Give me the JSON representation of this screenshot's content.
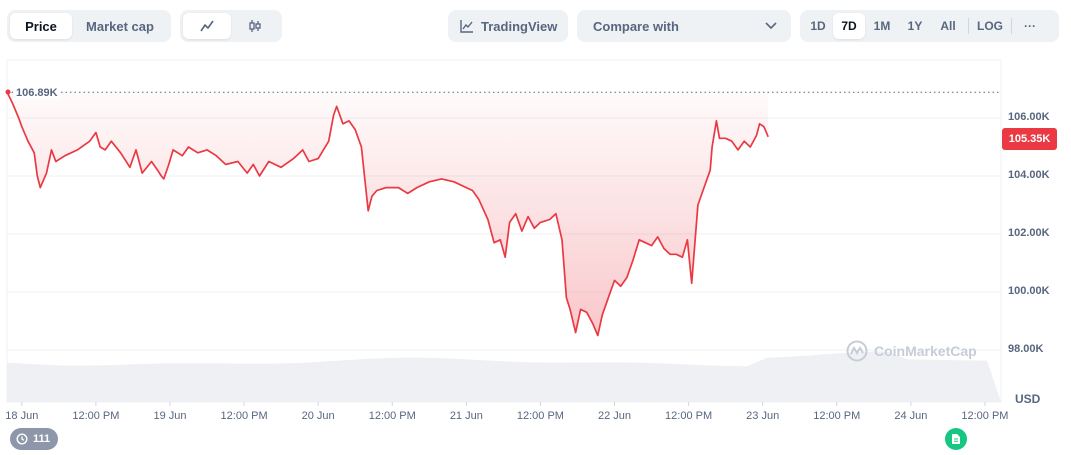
{
  "toolbar": {
    "view_tabs": [
      {
        "label": "Price",
        "active": true
      },
      {
        "label": "Market cap",
        "active": false
      }
    ],
    "chart_type_icons": [
      {
        "icon": "line-chart-icon",
        "active": true
      },
      {
        "icon": "candlestick-icon",
        "active": false
      }
    ],
    "tradingview_label": "TradingView",
    "compare_label": "Compare with",
    "timeframes": [
      {
        "label": "1D",
        "active": false
      },
      {
        "label": "7D",
        "active": true
      },
      {
        "label": "1M",
        "active": false
      },
      {
        "label": "1Y",
        "active": false
      },
      {
        "label": "All",
        "active": false
      }
    ],
    "log_label": "LOG",
    "more_label": "···"
  },
  "chart": {
    "current_price_label": "105.35K",
    "high_label": "106.89K",
    "currency_label": "USD",
    "watermark": "CoinMarketCap",
    "events_count": "111",
    "colors": {
      "line": "#ea3943",
      "accent_green": "#16c784",
      "tag_bg": "#ea3943"
    }
  },
  "chart_data": {
    "type": "line",
    "xlabel": "",
    "ylabel": "",
    "y_unit": "USD",
    "yticks": [
      "106.00K",
      "104.00K",
      "102.00K",
      "100.00K",
      "98.00K"
    ],
    "ylim": [
      97000,
      107800
    ],
    "xticks": [
      "18 Jun",
      "12:00 PM",
      "19 Jun",
      "12:00 PM",
      "20 Jun",
      "12:00 PM",
      "21 Jun",
      "12:00 PM",
      "22 Jun",
      "12:00 PM",
      "23 Jun",
      "12:00 PM",
      "24 Jun",
      "12:00 PM"
    ],
    "x_hours": [
      0,
      12,
      24,
      36,
      48,
      60,
      72,
      84,
      96,
      108,
      120,
      132,
      144,
      156
    ],
    "xlim": [
      -2.4,
      158.6
    ],
    "reference_line": {
      "label": "106.89K",
      "value": 106890
    },
    "grid": true,
    "series": [
      {
        "points": [
          [
            -2.4,
            106900
          ],
          [
            -1.5,
            106500
          ],
          [
            -0.5,
            106000
          ],
          [
            0,
            105700
          ],
          [
            1,
            105200
          ],
          [
            2,
            104800
          ],
          [
            2.5,
            104000
          ],
          [
            3,
            103600
          ],
          [
            4,
            104100
          ],
          [
            4.8,
            104900
          ],
          [
            5.5,
            104500
          ],
          [
            7,
            104700
          ],
          [
            9,
            104900
          ],
          [
            11,
            105200
          ],
          [
            12,
            105500
          ],
          [
            12.7,
            105000
          ],
          [
            13.5,
            104900
          ],
          [
            14.5,
            105200
          ],
          [
            16,
            104800
          ],
          [
            17.5,
            104300
          ],
          [
            18.5,
            104900
          ],
          [
            19.5,
            104100
          ],
          [
            21,
            104500
          ],
          [
            22,
            104200
          ],
          [
            22.6,
            104000
          ],
          [
            23,
            103900
          ],
          [
            23.8,
            104400
          ],
          [
            24.5,
            104900
          ],
          [
            26,
            104700
          ],
          [
            27,
            105000
          ],
          [
            28.5,
            104800
          ],
          [
            30,
            104900
          ],
          [
            31.5,
            104700
          ],
          [
            33,
            104400
          ],
          [
            35,
            104500
          ],
          [
            36.5,
            104100
          ],
          [
            37.5,
            104400
          ],
          [
            38.5,
            104000
          ],
          [
            40,
            104500
          ],
          [
            42,
            104300
          ],
          [
            44,
            104600
          ],
          [
            45.5,
            104900
          ],
          [
            46.5,
            104500
          ],
          [
            48,
            104600
          ],
          [
            49.7,
            105200
          ],
          [
            50.5,
            106100
          ],
          [
            51,
            106400
          ],
          [
            52,
            105800
          ],
          [
            53,
            105900
          ],
          [
            54,
            105600
          ],
          [
            55,
            105000
          ],
          [
            55.6,
            103800
          ],
          [
            56.1,
            102800
          ],
          [
            56.7,
            103300
          ],
          [
            57.5,
            103500
          ],
          [
            59,
            103600
          ],
          [
            61,
            103600
          ],
          [
            62.5,
            103400
          ],
          [
            64,
            103600
          ],
          [
            66,
            103800
          ],
          [
            68,
            103900
          ],
          [
            70,
            103800
          ],
          [
            72,
            103600
          ],
          [
            73,
            103500
          ],
          [
            74,
            103200
          ],
          [
            75.5,
            102500
          ],
          [
            76.5,
            101700
          ],
          [
            77.5,
            101800
          ],
          [
            78.3,
            101200
          ],
          [
            79,
            102400
          ],
          [
            80,
            102700
          ],
          [
            81,
            102100
          ],
          [
            82,
            102600
          ],
          [
            83,
            102200
          ],
          [
            84,
            102400
          ],
          [
            85.5,
            102500
          ],
          [
            86.5,
            102700
          ],
          [
            87.5,
            101800
          ],
          [
            88.2,
            99800
          ],
          [
            88.8,
            99400
          ],
          [
            89.7,
            98600
          ],
          [
            90.5,
            99400
          ],
          [
            91.5,
            99300
          ],
          [
            92.5,
            98900
          ],
          [
            93.3,
            98500
          ],
          [
            94,
            99200
          ],
          [
            95,
            99800
          ],
          [
            96,
            100400
          ],
          [
            97,
            100200
          ],
          [
            98,
            100500
          ],
          [
            99,
            101100
          ],
          [
            100,
            101800
          ],
          [
            101,
            101700
          ],
          [
            102,
            101600
          ],
          [
            103,
            101900
          ],
          [
            104,
            101500
          ],
          [
            105,
            101300
          ],
          [
            106,
            101300
          ],
          [
            107,
            101200
          ],
          [
            107.8,
            101800
          ],
          [
            108.5,
            100300
          ],
          [
            109.5,
            103000
          ],
          [
            110.5,
            103600
          ],
          [
            111.5,
            104200
          ],
          [
            111.8,
            105000
          ],
          [
            112.5,
            105900
          ],
          [
            113,
            105300
          ],
          [
            114,
            105300
          ],
          [
            115,
            105200
          ],
          [
            116,
            104900
          ],
          [
            117,
            105200
          ],
          [
            118,
            105000
          ],
          [
            119,
            105400
          ],
          [
            119.5,
            105800
          ],
          [
            120.2,
            105700
          ],
          [
            120.9,
            105350
          ]
        ]
      }
    ],
    "volume_band": true
  }
}
